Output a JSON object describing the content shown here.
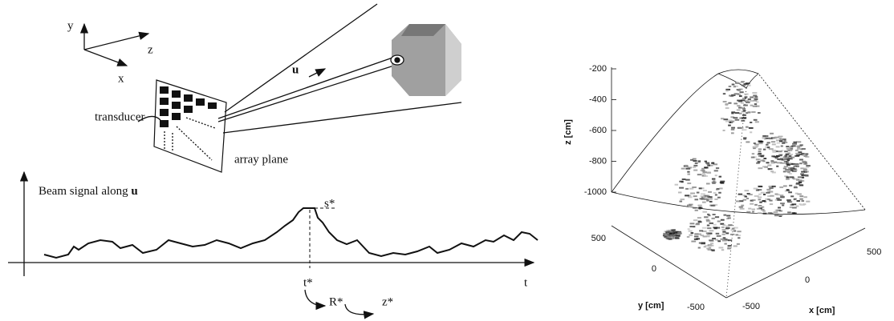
{
  "diagram": {
    "axes": {
      "y": "y",
      "z": "z",
      "x": "x"
    },
    "direction_label": "u",
    "transducer_label": "transducer",
    "array_plane_label": "array plane",
    "signal_title": "Beam signal along",
    "signal_title_vector": "u",
    "peak_label": "s*",
    "peak_time_label": "t*",
    "time_label": "t",
    "range_label": "R*",
    "depth_label": "z*"
  },
  "plot": {
    "z_label": "z [cm]",
    "z_ticks": [
      -200,
      -400,
      -600,
      -800,
      -1000
    ],
    "y_label": "y [cm]",
    "y_ticks": [
      500,
      0,
      -500
    ],
    "x_label": "x [cm]",
    "x_ticks": [
      -500,
      0,
      500
    ]
  }
}
